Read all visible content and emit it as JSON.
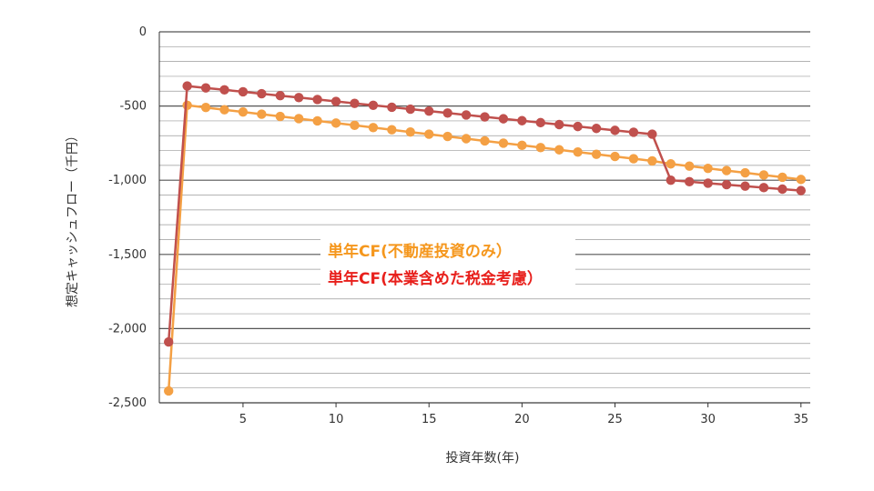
{
  "chart_data": {
    "type": "line",
    "xlabel": "投資年数(年)",
    "ylabel": "想定キャッシュフロー（千円）",
    "xlim": [
      0.5,
      35.5
    ],
    "ylim": [
      -2500,
      0
    ],
    "x_ticks": [
      5,
      10,
      15,
      20,
      25,
      30,
      35
    ],
    "y_ticks": [
      0,
      -500,
      -1000,
      -1500,
      -2000,
      -2500
    ],
    "y_tick_labels": [
      "0",
      "-500",
      "-1,000",
      "-1,500",
      "-2,000",
      "-2,500"
    ],
    "grid": true,
    "legend_position": "center",
    "x": [
      1,
      2,
      3,
      4,
      5,
      6,
      7,
      8,
      9,
      10,
      11,
      12,
      13,
      14,
      15,
      16,
      17,
      18,
      19,
      20,
      21,
      22,
      23,
      24,
      25,
      26,
      27,
      28,
      29,
      30,
      31,
      32,
      33,
      34,
      35
    ],
    "series": [
      {
        "name": "単年CF(不動産投資のみ）",
        "color": "#F4A044",
        "legend_color": "#F5971D",
        "values": [
          -2420,
          -495,
          -510,
          -525,
          -540,
          -555,
          -570,
          -585,
          -600,
          -615,
          -630,
          -645,
          -660,
          -675,
          -690,
          -705,
          -720,
          -735,
          -750,
          -765,
          -780,
          -795,
          -810,
          -825,
          -840,
          -855,
          -870,
          -890,
          -905,
          -920,
          -935,
          -950,
          -965,
          -980,
          -995
        ]
      },
      {
        "name": "単年CF(本業含めた税金考慮）",
        "color": "#C0504D",
        "legend_color": "#E8201C",
        "values": [
          -2090,
          -365,
          -378,
          -391,
          -404,
          -417,
          -430,
          -443,
          -456,
          -469,
          -482,
          -495,
          -508,
          -521,
          -534,
          -547,
          -560,
          -573,
          -586,
          -599,
          -612,
          -625,
          -638,
          -651,
          -664,
          -677,
          -690,
          -1000,
          -1010,
          -1020,
          -1030,
          -1040,
          -1050,
          -1060,
          -1070
        ]
      }
    ]
  }
}
